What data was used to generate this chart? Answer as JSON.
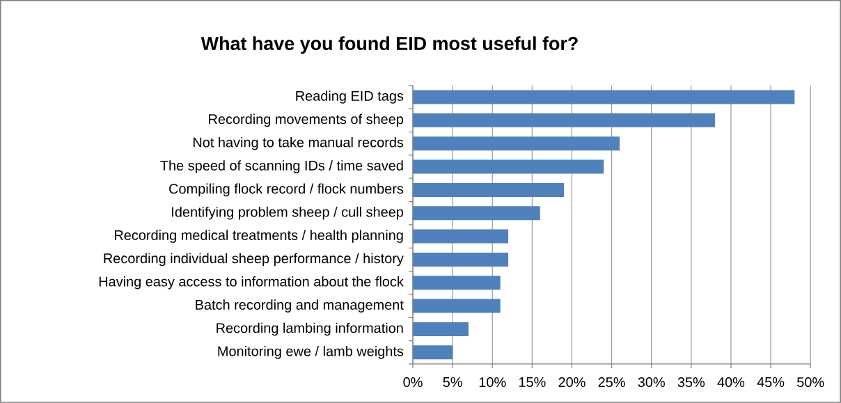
{
  "chart_data": {
    "type": "bar",
    "orientation": "horizontal",
    "title": "What have you found EID most useful for?",
    "categories": [
      "Reading EID tags",
      "Recording movements of sheep",
      "Not having to take manual records",
      "The speed of scanning IDs / time saved",
      "Compiling flock record / flock numbers",
      "Identifying problem sheep / cull sheep",
      "Recording medical treatments / health planning",
      "Recording individual sheep performance / history",
      "Having easy access to information about the flock",
      "Batch recording and management",
      "Recording lambing information",
      "Monitoring ewe / lamb weights"
    ],
    "values": [
      48,
      38,
      26,
      24,
      19,
      16,
      12,
      12,
      11,
      11,
      7,
      5
    ],
    "color": "#4f81bd",
    "grid": "x",
    "xlim": [
      0,
      50
    ],
    "xticks": [
      {
        "value": 0,
        "label": "0%"
      },
      {
        "value": 5,
        "label": "5%"
      },
      {
        "value": 10,
        "label": "10%"
      },
      {
        "value": 15,
        "label": "15%"
      },
      {
        "value": 20,
        "label": "20%"
      },
      {
        "value": 25,
        "label": "25%"
      },
      {
        "value": 30,
        "label": "30%"
      },
      {
        "value": 35,
        "label": "35%"
      },
      {
        "value": 40,
        "label": "40%"
      },
      {
        "value": 45,
        "label": "45%"
      },
      {
        "value": 50,
        "label": "50%"
      }
    ]
  }
}
